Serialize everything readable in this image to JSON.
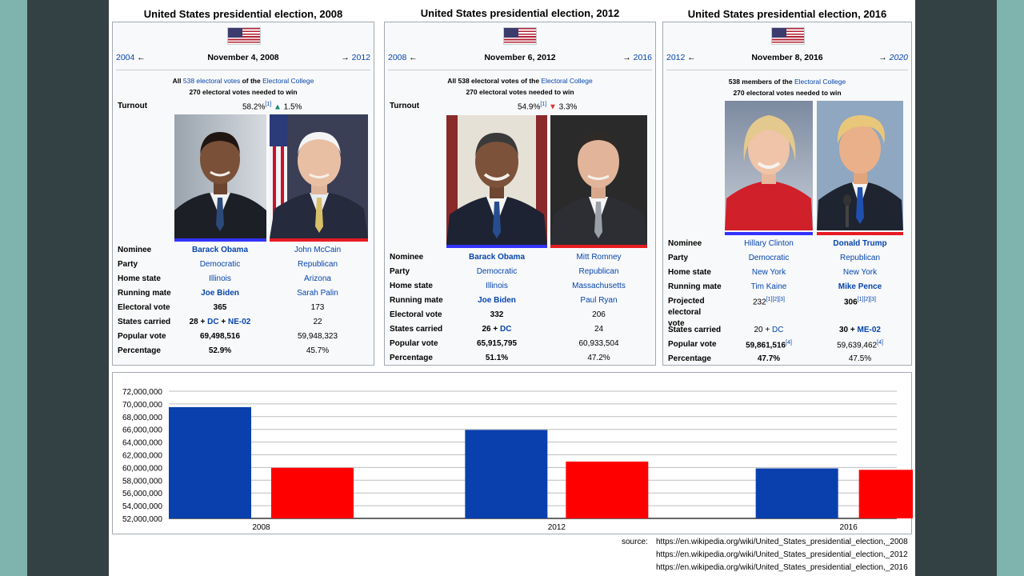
{
  "elections": [
    {
      "title": "United States presidential election, 2008",
      "prev": "2004",
      "date": "November 4, 2008",
      "next": "2012",
      "next_italic": false,
      "notes_line1_pre": "All ",
      "notes_line1_link": "538 electoral votes",
      "notes_line1_mid": " of the ",
      "notes_line1_link2": "Electoral College",
      "notes_line2": "270 electoral votes needed to win",
      "turnout_label": "Turnout",
      "turnout_value": "58.2%",
      "turnout_ref": "[1]",
      "turnout_change": "1.5%",
      "turnout_dir": "up",
      "rows": [
        {
          "label": "Nominee",
          "dem": "Barack Obama",
          "rep": "John McCain",
          "dem_bold": true,
          "rep_bold": false,
          "link": true
        },
        {
          "label": "Party",
          "dem": "Democratic",
          "rep": "Republican",
          "link": true
        },
        {
          "label": "Home state",
          "dem": "Illinois",
          "rep": "Arizona",
          "link": true
        },
        {
          "label": "Running mate",
          "dem": "Joe Biden",
          "rep": "Sarah Palin",
          "dem_bold": true,
          "link": true
        },
        {
          "label": "Electoral vote",
          "dem": "365",
          "rep": "173",
          "dem_bold": true
        },
        {
          "label": "States carried",
          "dem": "28 + DC + NE-02",
          "rep": "22",
          "dem_bold": true
        },
        {
          "label": "Popular vote",
          "dem": "69,498,516",
          "rep": "59,948,323",
          "dem_bold": true
        },
        {
          "label": "Percentage",
          "dem": "52.9%",
          "rep": "45.7%",
          "dem_bold": true
        }
      ]
    },
    {
      "title": "United States presidential election, 2012",
      "prev": "2008",
      "date": "November 6, 2012",
      "next": "2016",
      "next_italic": false,
      "notes_line1_pre": "All 538 electoral votes of the ",
      "notes_line1_link": "",
      "notes_line1_mid": "",
      "notes_line1_link2": "Electoral College",
      "notes_line2": "270 electoral votes needed to win",
      "turnout_label": "Turnout",
      "turnout_value": "54.9%",
      "turnout_ref": "[1]",
      "turnout_change": "3.3%",
      "turnout_dir": "down",
      "rows": [
        {
          "label": "Nominee",
          "dem": "Barack Obama",
          "rep": "Mitt Romney",
          "dem_bold": true,
          "link": true
        },
        {
          "label": "Party",
          "dem": "Democratic",
          "rep": "Republican",
          "link": true
        },
        {
          "label": "Home state",
          "dem": "Illinois",
          "rep": "Massachusetts",
          "link": true
        },
        {
          "label": "Running mate",
          "dem": "Joe Biden",
          "rep": "Paul Ryan",
          "dem_bold": true,
          "link": true
        },
        {
          "label": "Electoral vote",
          "dem": "332",
          "rep": "206",
          "dem_bold": true
        },
        {
          "label": "States carried",
          "dem": "26 + DC",
          "rep": "24",
          "dem_bold": true
        },
        {
          "label": "Popular vote",
          "dem": "65,915,795",
          "rep": "60,933,504",
          "dem_bold": true
        },
        {
          "label": "Percentage",
          "dem": "51.1%",
          "rep": "47.2%",
          "dem_bold": true
        }
      ]
    },
    {
      "title": "United States presidential election, 2016",
      "prev": "2012",
      "date": "November 8, 2016",
      "next": "2020",
      "next_italic": true,
      "notes_line1_pre": "538 members of the ",
      "notes_line1_link": "",
      "notes_line1_mid": "",
      "notes_line1_link2": "Electoral College",
      "notes_line2": "270 electoral votes needed to win",
      "turnout_label": "",
      "turnout_value": "",
      "turnout_ref": "",
      "turnout_change": "",
      "turnout_dir": "",
      "rows": [
        {
          "label": "Nominee",
          "dem": "Hillary Clinton",
          "rep": "Donald Trump",
          "rep_bold": true,
          "link": true
        },
        {
          "label": "Party",
          "dem": "Democratic",
          "rep": "Republican",
          "link": true
        },
        {
          "label": "Home state",
          "dem": "New York",
          "rep": "New York",
          "link": true
        },
        {
          "label": "Running mate",
          "dem": "Tim Kaine",
          "rep": "Mike Pence",
          "rep_bold": true,
          "link": true
        },
        {
          "label": "Projected electoral vote",
          "dem": "232",
          "rep": "306",
          "rep_bold": true,
          "dem_ref": "[1][2][3]",
          "rep_ref": "[1][2][3]"
        },
        {
          "label": "States carried",
          "dem": "20 + DC",
          "rep": "30 + ME-02",
          "rep_bold": true
        },
        {
          "label": "Popular vote",
          "dem": "59,861,516",
          "rep": "59,639,462",
          "dem_bold": true,
          "dem_ref": "[4]",
          "rep_ref": "[4]"
        },
        {
          "label": "Percentage",
          "dem": "47.7%",
          "rep": "47.5%",
          "dem_bold": true
        }
      ]
    }
  ],
  "chart_data": {
    "type": "bar",
    "categories": [
      "2008",
      "2012",
      "2016"
    ],
    "series": [
      {
        "values": [
          69498516,
          65915795,
          59861516
        ],
        "color": "#0a3fae"
      },
      {
        "values": [
          59948323,
          60933504,
          59639462
        ],
        "color": "#ff0000"
      }
    ],
    "ylim": [
      52000000,
      72000000
    ],
    "yticks": [
      "52,000,000",
      "54,000,000",
      "56,000,000",
      "58,000,000",
      "60,000,000",
      "62,000,000",
      "64,000,000",
      "66,000,000",
      "68,000,000",
      "70,000,000",
      "72,000,000"
    ],
    "title": "",
    "xlabel": "",
    "ylabel": "",
    "grid": true,
    "legend": "none"
  },
  "source": {
    "label": "source:",
    "urls": [
      "https://en.wikipedia.org/wiki/United_States_presidential_election,_2008",
      "https://en.wikipedia.org/wiki/United_States_presidential_election,_2012",
      "https://en.wikipedia.org/wiki/United_States_presidential_election,_2016"
    ]
  },
  "colors": {
    "dem": "#0a3fae",
    "rep": "#ff0000",
    "dem_bar": "#3333ff",
    "rep_bar": "#e81b23",
    "link": "#0645ad"
  }
}
